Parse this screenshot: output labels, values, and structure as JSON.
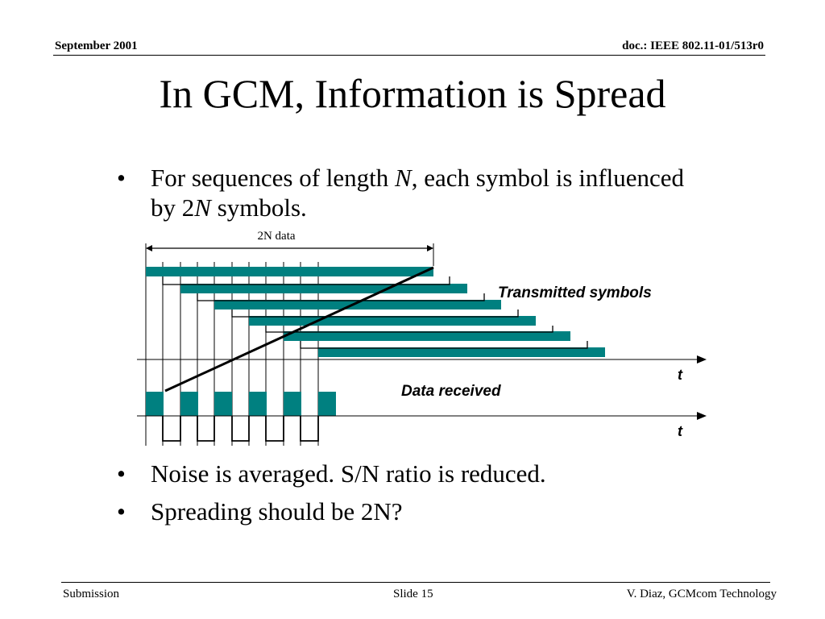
{
  "header": {
    "date": "September 2001",
    "doc": "doc.: IEEE 802.11-01/513r0"
  },
  "title": "In GCM, Information is Spread",
  "bullets": {
    "b1": {
      "part1": "For sequences of length ",
      "italic_n": "N",
      "part2": ", each symbol is influenced",
      "part3": "by 2",
      "italic_n2": "N",
      "part4": " symbols."
    },
    "b2": "Noise is averaged. S/N ratio is reduced.",
    "b3": "Spreading should be 2N?",
    "marker": "•"
  },
  "diagram": {
    "span_label": "2N data",
    "transmitted_label": "Transmitted symbols",
    "received_label": "Data received",
    "axis_label_top": "t",
    "axis_label_bottom": "t",
    "bar_color": "#008080"
  },
  "footer": {
    "left": "Submission",
    "middle": "Slide 15",
    "right": "V. Diaz, GCMcom Technology"
  }
}
